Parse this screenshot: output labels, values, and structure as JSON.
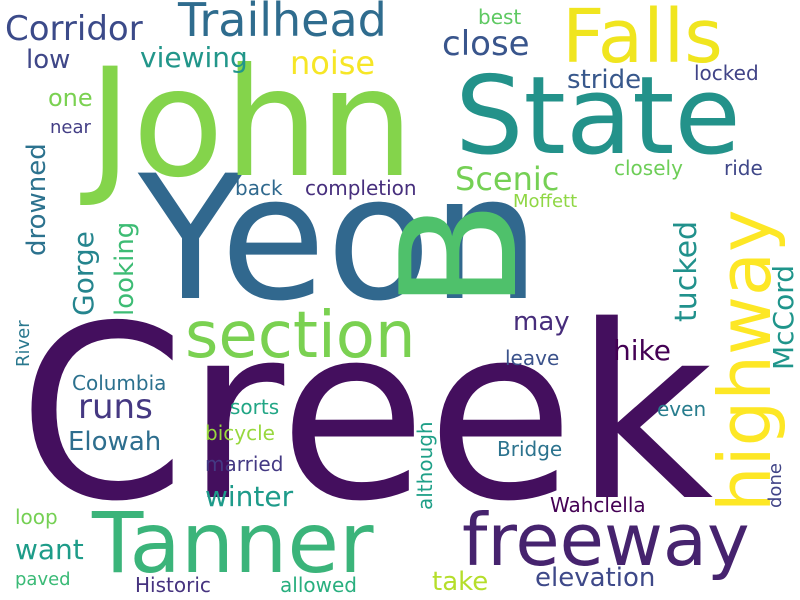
{
  "background": "#ffffff",
  "words": [
    {
      "text": "Creek",
      "color": "#440f5e"
    },
    {
      "text": "Yeon",
      "color": "#31688e"
    },
    {
      "text": "John",
      "color": "#84d44b"
    },
    {
      "text": "State",
      "color": "#23928a"
    },
    {
      "text": "B",
      "color": "#4fc16b"
    },
    {
      "text": "Tanner",
      "color": "#3bb47a"
    },
    {
      "text": "highway",
      "color": "#fde725"
    },
    {
      "text": "freeway",
      "color": "#46236e"
    },
    {
      "text": "Falls",
      "color": "#f0e51f"
    },
    {
      "text": "section",
      "color": "#7ad151"
    },
    {
      "text": "Trailhead",
      "color": "#2f6c8e"
    },
    {
      "text": "Corridor",
      "color": "#3b4a89"
    },
    {
      "text": "close",
      "color": "#39558c"
    },
    {
      "text": "noise",
      "color": "#f6e626"
    },
    {
      "text": "viewing",
      "color": "#22968a"
    },
    {
      "text": "low",
      "color": "#3f4788"
    },
    {
      "text": "best",
      "color": "#5ec962"
    },
    {
      "text": "stride",
      "color": "#38588c"
    },
    {
      "text": "locked",
      "color": "#414487"
    },
    {
      "text": "one",
      "color": "#7ad151"
    },
    {
      "text": "near",
      "color": "#433e85"
    },
    {
      "text": "drowned",
      "color": "#2c728e"
    },
    {
      "text": "Scenic",
      "color": "#75d054"
    },
    {
      "text": "closely",
      "color": "#6ece58"
    },
    {
      "text": "ride",
      "color": "#3f4788"
    },
    {
      "text": "completion",
      "color": "#472f7d"
    },
    {
      "text": "back",
      "color": "#30698e"
    },
    {
      "text": "Moffett",
      "color": "#8fd744"
    },
    {
      "text": "tucked",
      "color": "#21918c"
    },
    {
      "text": "McCord",
      "color": "#1f958b"
    },
    {
      "text": "Gorge",
      "color": "#25858e"
    },
    {
      "text": "looking",
      "color": "#3dbc74"
    },
    {
      "text": "may",
      "color": "#472d7b"
    },
    {
      "text": "hike",
      "color": "#440154"
    },
    {
      "text": "runs",
      "color": "#453882"
    },
    {
      "text": "River",
      "color": "#2a788e"
    },
    {
      "text": "leave",
      "color": "#3b528b"
    },
    {
      "text": "Columbia",
      "color": "#2c718e"
    },
    {
      "text": "sorts",
      "color": "#21a685"
    },
    {
      "text": "even",
      "color": "#287d8e"
    },
    {
      "text": "Elowah",
      "color": "#2e6e8e"
    },
    {
      "text": "bicycle",
      "color": "#98d83e"
    },
    {
      "text": "Bridge",
      "color": "#2c738e"
    },
    {
      "text": "although",
      "color": "#1fa088"
    },
    {
      "text": "married",
      "color": "#443983"
    },
    {
      "text": "done",
      "color": "#414487"
    },
    {
      "text": "winter",
      "color": "#1e9b8a"
    },
    {
      "text": "Wahclella",
      "color": "#440154"
    },
    {
      "text": "want",
      "color": "#1e9c89"
    },
    {
      "text": "loop",
      "color": "#75d054"
    },
    {
      "text": "take",
      "color": "#b5de2b"
    },
    {
      "text": "elevation",
      "color": "#3e4989"
    },
    {
      "text": "paved",
      "color": "#3aba76"
    },
    {
      "text": "Historic",
      "color": "#46337f"
    },
    {
      "text": "allowed",
      "color": "#29af7f"
    }
  ]
}
